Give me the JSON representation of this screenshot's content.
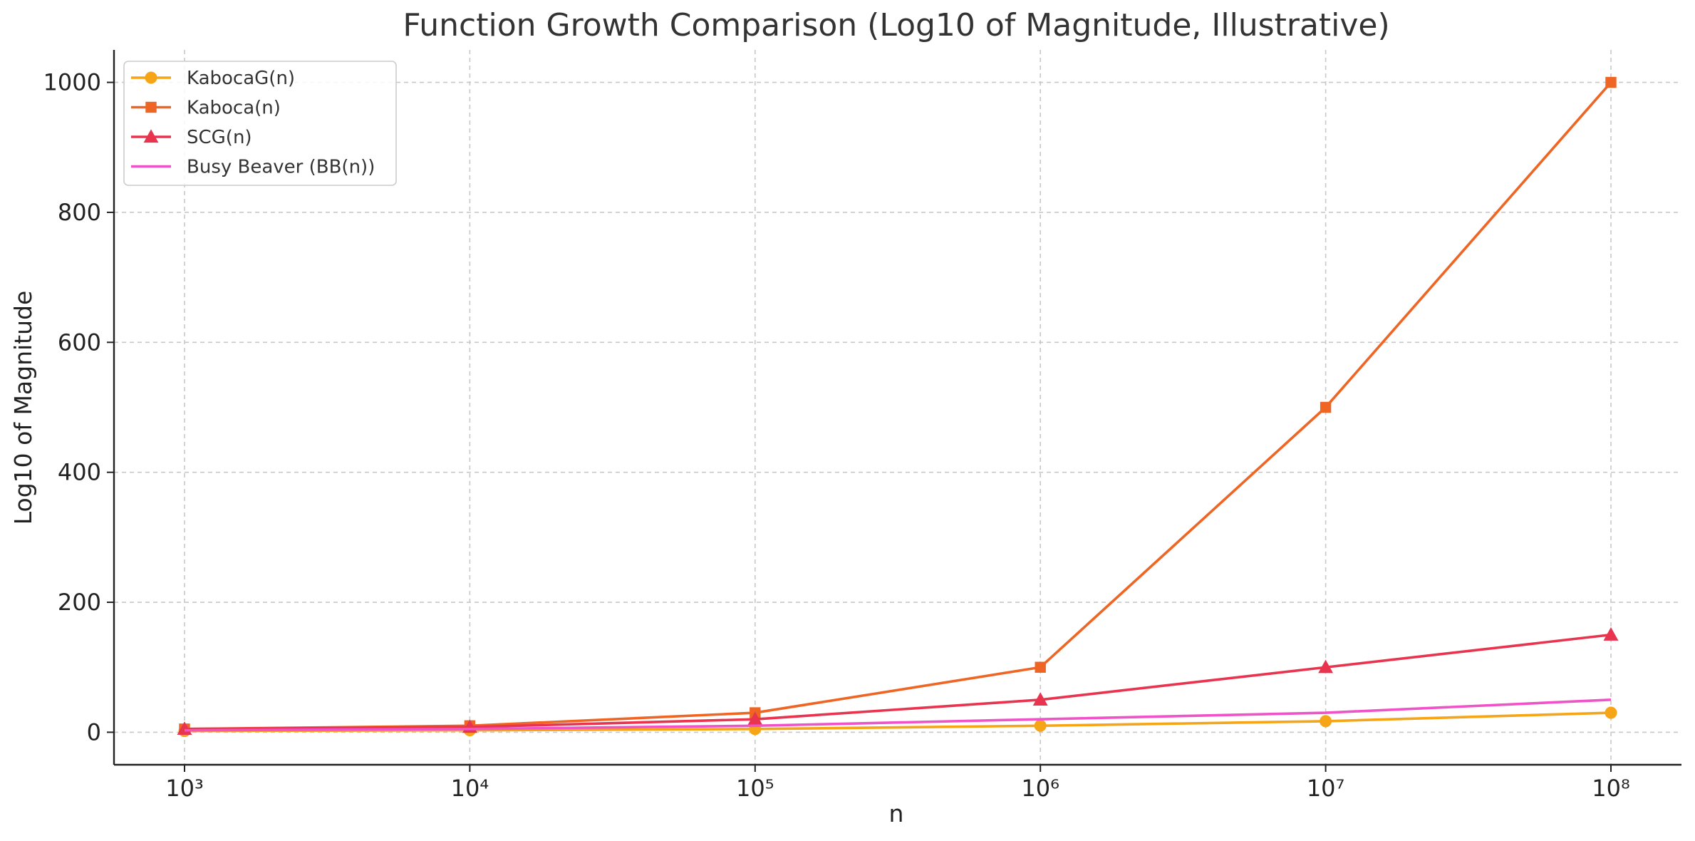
{
  "chart_data": {
    "type": "line",
    "title": "Function Growth Comparison (Log10 of Magnitude, Illustrative)",
    "xlabel": "n",
    "ylabel": "Log10 of Magnitude",
    "x": [
      1000,
      10000,
      100000,
      1000000,
      10000000,
      100000000
    ],
    "x_tick_labels": [
      "10³",
      "10⁴",
      "10⁵",
      "10⁶",
      "10⁷",
      "10⁸"
    ],
    "x_scale": "log",
    "ylim": [
      -50,
      1050
    ],
    "y_ticks": [
      0,
      200,
      400,
      600,
      800,
      1000
    ],
    "grid": true,
    "legend_position": "top-left",
    "series": [
      {
        "name": "KabocaG(n)",
        "color": "#F5A516",
        "marker": "circle",
        "values": [
          2,
          3,
          5,
          10,
          17,
          30
        ]
      },
      {
        "name": "Kaboca(n)",
        "color": "#EE6524",
        "marker": "square",
        "values": [
          5,
          10,
          30,
          100,
          500,
          1000
        ]
      },
      {
        "name": "SCG(n)",
        "color": "#E8344E",
        "marker": "triangle",
        "values": [
          5,
          8,
          20,
          50,
          100,
          150
        ]
      },
      {
        "name": "Busy Beaver (BB(n))",
        "color": "#EE54C8",
        "marker": "none",
        "values": [
          3,
          5,
          10,
          20,
          30,
          50
        ]
      }
    ]
  }
}
